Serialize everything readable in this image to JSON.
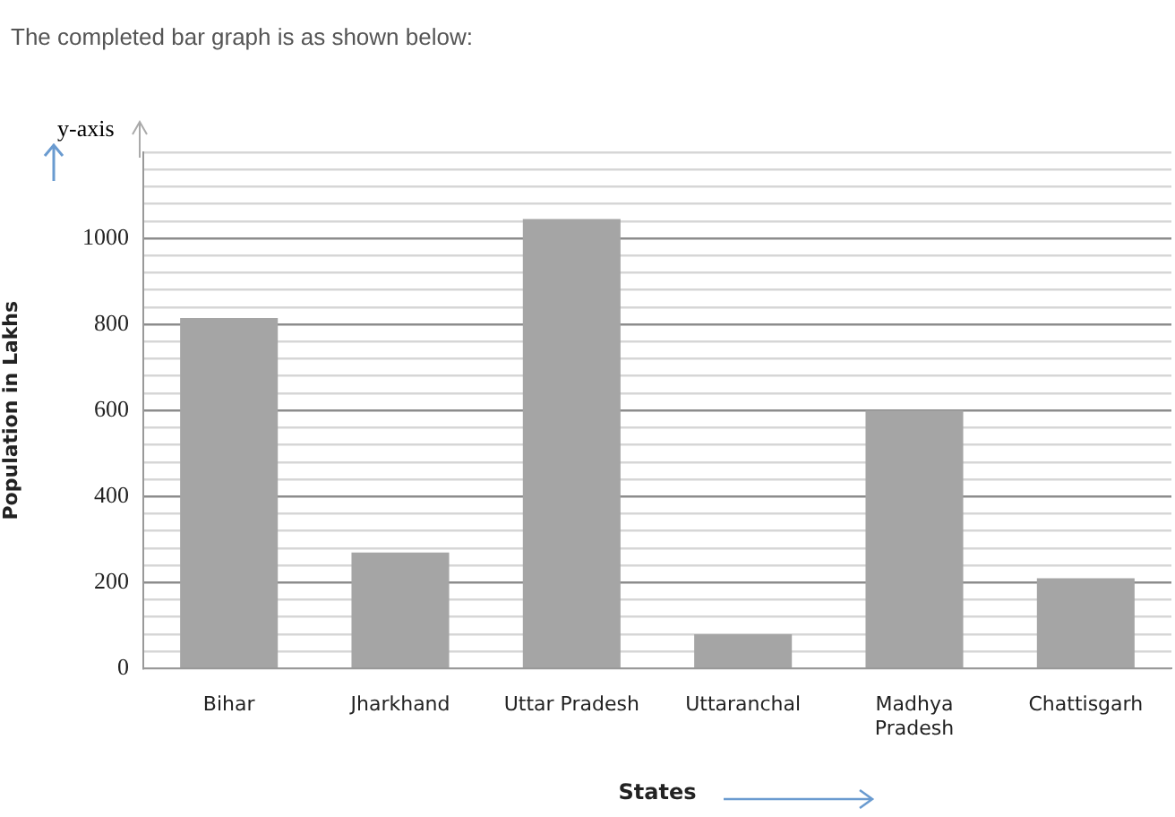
{
  "chart_data": {
    "type": "bar",
    "title": "The completed bar graph is as shown below:",
    "xlabel": "States",
    "ylabel": "Population in Lakhs",
    "annotations": [
      "y-axis"
    ],
    "categories": [
      "Bihar",
      "Jharkhand",
      "Uttar Pradesh",
      "Uttaranchal",
      "Madhya Pradesh",
      "Chattisgarh"
    ],
    "values": [
      815,
      270,
      1045,
      80,
      600,
      210
    ],
    "color": "#a5a5a5",
    "ylim": [
      0,
      1200
    ],
    "yticks": [
      0,
      {
        "value": 40,
        "label": null
      },
      {
        "value": 80,
        "label": null
      },
      {
        "value": 120,
        "label": null
      },
      {
        "value": 160,
        "label": null
      },
      200,
      {
        "value": 240,
        "label": null
      },
      {
        "value": 280,
        "label": null
      },
      {
        "value": 320,
        "label": null
      },
      {
        "value": 360,
        "label": null
      },
      400,
      {
        "value": 440,
        "label": null
      },
      {
        "value": 480,
        "label": null
      },
      {
        "value": 520,
        "label": null
      },
      {
        "value": 560,
        "label": null
      },
      600,
      {
        "value": 640,
        "label": null
      },
      {
        "value": 680,
        "label": null
      },
      {
        "value": 720,
        "label": null
      },
      {
        "value": 760,
        "label": null
      },
      800,
      {
        "value": 840,
        "label": null
      },
      {
        "value": 880,
        "label": null
      },
      {
        "value": 920,
        "label": null
      },
      {
        "value": 960,
        "label": null
      },
      1000,
      {
        "value": 1040,
        "label": null
      },
      {
        "value": 1080,
        "label": null
      },
      {
        "value": 1120,
        "label": null
      },
      {
        "value": 1160,
        "label": null
      },
      {
        "value": 1200,
        "label": null
      }
    ],
    "grid": "y"
  }
}
